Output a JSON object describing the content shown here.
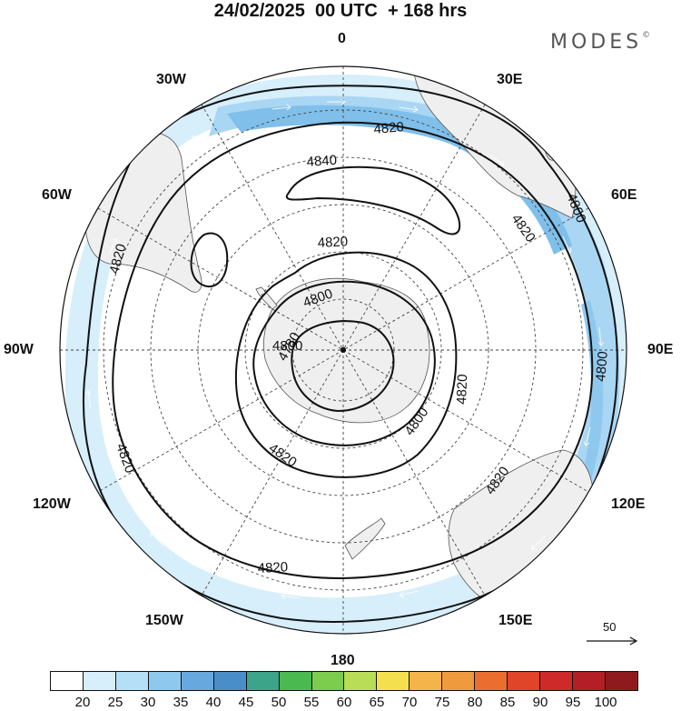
{
  "title": "24/02/2025  00 UTC  + 168 hrs",
  "brand": "MODES",
  "brand_mark": "©",
  "longitude_labels": {
    "n": "0",
    "s": "180",
    "w": "90W",
    "e": "90E",
    "w30": "30W",
    "e30": "30E",
    "w60": "60W",
    "e60": "60E",
    "w120": "120W",
    "e120": "120E",
    "w150": "150W",
    "e150": "150E"
  },
  "contour_labels": [
    "4840",
    "4820",
    "4820",
    "4820",
    "4820",
    "4820",
    "4820",
    "4820",
    "4820",
    "4820",
    "4800",
    "4800",
    "4800",
    "4800",
    "4800",
    "4780"
  ],
  "vector_reference": {
    "label": "50"
  },
  "colorbar": {
    "colors": [
      "#ffffff",
      "#d7eefb",
      "#b5dff7",
      "#8ec8ef",
      "#67a9df",
      "#4a8ec9",
      "#3ca488",
      "#4ab94f",
      "#7ccc4e",
      "#b9dd56",
      "#f4e04e",
      "#f5b44a",
      "#f09a3e",
      "#eb6e2f",
      "#e0452a",
      "#cf2a2a",
      "#b41e26",
      "#8f1a1e"
    ],
    "ticks": [
      "20",
      "25",
      "30",
      "35",
      "40",
      "45",
      "50",
      "55",
      "60",
      "65",
      "70",
      "75",
      "80",
      "85",
      "90",
      "95",
      "100"
    ]
  },
  "colors": {
    "land": "#efefef",
    "jet_light": "#b5dff7",
    "jet_mid": "#8ec8ef",
    "contour": "#111111",
    "grid": "#444444"
  }
}
